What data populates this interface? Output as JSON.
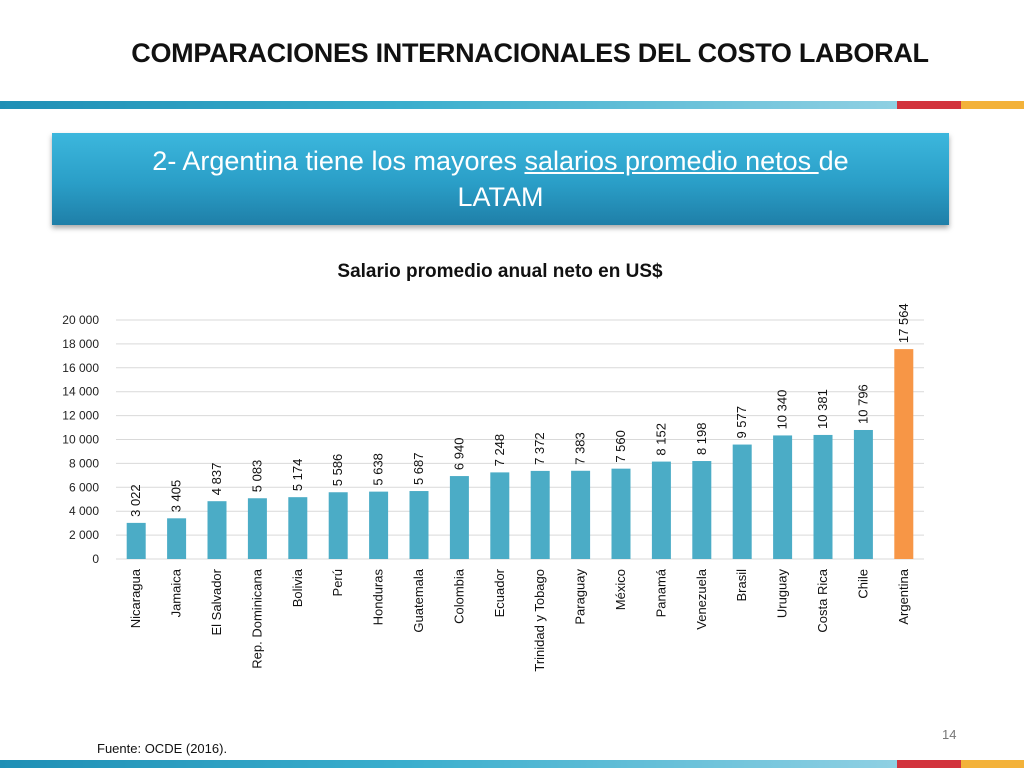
{
  "slide": {
    "title": "COMPARACIONES INTERNACIONALES DEL COSTO LABORAL",
    "banner_part1": "2- Argentina tiene los mayores ",
    "banner_underlined": "salarios promedio netos ",
    "banner_part2": "de",
    "banner_line2": "LATAM",
    "source": "Fuente: OCDE (2016).",
    "page_number": "14"
  },
  "colors": {
    "bar": "#4bacc6",
    "highlight_bar": "#f79646",
    "grid": "#d9d9d9"
  },
  "chart_data": {
    "type": "bar",
    "title": "Salario promedio anual neto en US$",
    "categories": [
      "Nicaragua",
      "Jamaica",
      "El Salvador",
      "Rep. Dominicana",
      "Bolivia",
      "Perú",
      "Honduras",
      "Guatemala",
      "Colombia",
      "Ecuador",
      "Trinidad y Tobago",
      "Paraguay",
      "México",
      "Panamá",
      "Venezuela",
      "Brasil",
      "Uruguay",
      "Costa Rica",
      "Chile",
      "Argentina"
    ],
    "values": [
      3022,
      3405,
      4837,
      5083,
      5174,
      5586,
      5638,
      5687,
      6940,
      7248,
      7372,
      7383,
      7560,
      8152,
      8198,
      9577,
      10340,
      10381,
      10796,
      17564
    ],
    "value_labels": [
      "3 022",
      "3 405",
      "4 837",
      "5 083",
      "5 174",
      "5 586",
      "5 638",
      "5 687",
      "6 940",
      "7 248",
      "7 372",
      "7 383",
      "7 560",
      "8 152",
      "8 198",
      "9 577",
      "10 340",
      "10 381",
      "10 796",
      "17 564"
    ],
    "highlight": "Argentina",
    "ylim": [
      0,
      20000
    ],
    "yticks": [
      0,
      2000,
      4000,
      6000,
      8000,
      10000,
      12000,
      14000,
      16000,
      18000,
      20000
    ],
    "ytick_labels": [
      "0",
      "2 000",
      "4 000",
      "6 000",
      "8 000",
      "10 000",
      "12 000",
      "14 000",
      "16 000",
      "18 000",
      "20 000"
    ],
    "grid": true,
    "legend": "none"
  }
}
